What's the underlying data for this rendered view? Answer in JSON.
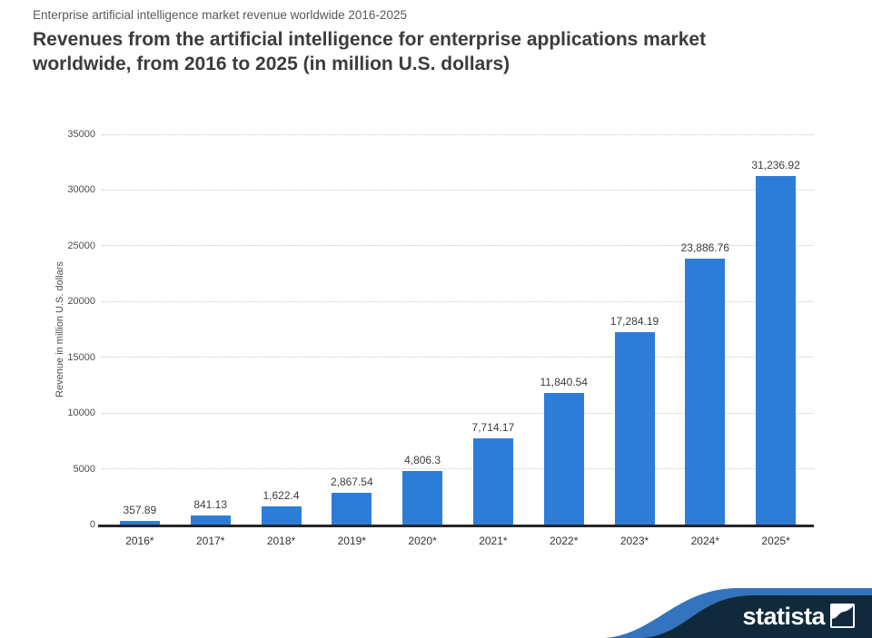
{
  "header": {
    "subtitle": "Enterprise artificial intelligence market revenue worldwide 2016-2025",
    "title": "Revenues from the artificial intelligence for enterprise applications market worldwide, from 2016 to 2025 (in million U.S. dollars)"
  },
  "chart_data": {
    "type": "bar",
    "title": "Revenues from the artificial intelligence for enterprise applications market worldwide, from 2016 to 2025 (in million U.S. dollars)",
    "categories": [
      "2016*",
      "2017*",
      "2018*",
      "2019*",
      "2020*",
      "2021*",
      "2022*",
      "2023*",
      "2024*",
      "2025*"
    ],
    "values": [
      357.89,
      841.13,
      1622.4,
      2867.54,
      4806.3,
      7714.17,
      11840.54,
      17284.19,
      23886.76,
      31236.92
    ],
    "value_labels": [
      "357.89",
      "841.13",
      "1,622.4",
      "2,867.54",
      "4,806.3",
      "7,714.17",
      "11,840.54",
      "17,284.19",
      "23,886.76",
      "31,236.92"
    ],
    "xlabel": "",
    "ylabel": "Revenue in million U.S. dollars",
    "ylim": [
      0,
      35000
    ],
    "ytick_step": 5000,
    "ytick_labels": [
      "0",
      "5000",
      "10000",
      "15000",
      "20000",
      "25000",
      "30000",
      "35000"
    ],
    "grid": "horizontal-dotted",
    "legend": "none",
    "bar_color": "#2d7dd8"
  },
  "footer": {
    "brand": "statista",
    "banner_navy": "#102a3c",
    "banner_blue": "#3473be"
  }
}
